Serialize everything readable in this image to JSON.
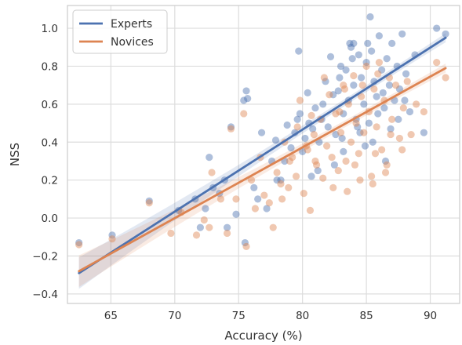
{
  "chart_data": {
    "type": "scatter",
    "title": "",
    "xlabel": "Accuracy (%)",
    "ylabel": "NSS",
    "xlim": [
      61.6,
      92.3
    ],
    "ylim": [
      -0.45,
      1.12
    ],
    "xticks": [
      65,
      70,
      75,
      80,
      85,
      90
    ],
    "xtick_labels": [
      "65",
      "70",
      "75",
      "80",
      "85",
      "90"
    ],
    "yticks": [
      -0.4,
      -0.2,
      0.0,
      0.2,
      0.4,
      0.6,
      0.8,
      1.0
    ],
    "ytick_labels": [
      "−0.4",
      "−0.2",
      "0.0",
      "0.2",
      "0.4",
      "0.6",
      "0.8",
      "1.0"
    ],
    "grid": true,
    "legend_position": "top-left",
    "series": [
      {
        "name": "Experts",
        "color": "#4c72b0",
        "regression": {
          "x": [
            62.5,
            91.2
          ],
          "y": [
            -0.29,
            0.95
          ]
        },
        "points": [
          [
            62.5,
            -0.13
          ],
          [
            65.1,
            -0.09
          ],
          [
            68.0,
            0.09
          ],
          [
            70.3,
            0.04
          ],
          [
            71.6,
            0.1
          ],
          [
            72.0,
            -0.05
          ],
          [
            72.4,
            0.05
          ],
          [
            72.7,
            0.32
          ],
          [
            73.0,
            0.16
          ],
          [
            73.5,
            0.13
          ],
          [
            73.9,
            0.2
          ],
          [
            74.1,
            -0.05
          ],
          [
            74.4,
            0.48
          ],
          [
            74.8,
            0.02
          ],
          [
            75.4,
            0.62
          ],
          [
            75.6,
            0.67
          ],
          [
            75.7,
            0.63
          ],
          [
            75.5,
            -0.13
          ],
          [
            76.2,
            0.16
          ],
          [
            76.5,
            0.1
          ],
          [
            76.8,
            0.45
          ],
          [
            77.2,
            0.05
          ],
          [
            77.6,
            0.3
          ],
          [
            77.9,
            0.41
          ],
          [
            78.0,
            0.2
          ],
          [
            78.3,
            0.2
          ],
          [
            78.6,
            0.3
          ],
          [
            78.8,
            0.49
          ],
          [
            79.1,
            0.37
          ],
          [
            79.4,
            0.45
          ],
          [
            79.6,
            0.52
          ],
          [
            79.8,
            0.55
          ],
          [
            80.0,
            0.35
          ],
          [
            80.2,
            0.42
          ],
          [
            80.5,
            0.5
          ],
          [
            80.7,
            0.22
          ],
          [
            81.0,
            0.58
          ],
          [
            81.3,
            0.4
          ],
          [
            81.6,
            0.6
          ],
          [
            81.8,
            0.72
          ],
          [
            82.0,
            0.48
          ],
          [
            82.2,
            0.85
          ],
          [
            82.4,
            0.65
          ],
          [
            82.6,
            0.44
          ],
          [
            82.8,
            0.67
          ],
          [
            83.0,
            0.8
          ],
          [
            83.2,
            0.55
          ],
          [
            83.4,
            0.78
          ],
          [
            83.6,
            0.62
          ],
          [
            83.8,
            0.9
          ],
          [
            84.0,
            0.7
          ],
          [
            84.2,
            0.52
          ],
          [
            84.4,
            0.86
          ],
          [
            84.6,
            0.74
          ],
          [
            84.8,
            0.6
          ],
          [
            85.0,
            0.82
          ],
          [
            85.2,
            0.5
          ],
          [
            85.4,
            0.88
          ],
          [
            85.6,
            0.72
          ],
          [
            85.8,
            0.64
          ],
          [
            86.0,
            0.96
          ],
          [
            86.2,
            0.78
          ],
          [
            86.4,
            0.58
          ],
          [
            86.6,
            0.84
          ],
          [
            86.8,
            0.7
          ],
          [
            87.0,
            0.92
          ],
          [
            87.2,
            0.62
          ],
          [
            87.4,
            0.8
          ],
          [
            87.6,
            0.68
          ],
          [
            87.8,
            0.97
          ],
          [
            88.1,
            0.76
          ],
          [
            88.4,
            0.56
          ],
          [
            88.8,
            0.86
          ],
          [
            89.5,
            0.45
          ],
          [
            90.5,
            1.0
          ],
          [
            91.2,
            0.97
          ],
          [
            84.0,
            0.92
          ],
          [
            84.5,
            0.45
          ],
          [
            85.3,
            1.06
          ],
          [
            86.5,
            0.3
          ],
          [
            83.2,
            0.35
          ],
          [
            82.5,
            0.28
          ],
          [
            81.2,
            0.25
          ],
          [
            80.4,
            0.66
          ],
          [
            79.7,
            0.88
          ],
          [
            85.5,
            0.4
          ],
          [
            84.9,
            0.38
          ],
          [
            86.9,
            0.47
          ],
          [
            83.7,
            0.92
          ],
          [
            82.9,
            0.74
          ],
          [
            85.9,
            0.55
          ],
          [
            84.3,
            0.48
          ],
          [
            83.1,
            0.42
          ],
          [
            87.5,
            0.52
          ],
          [
            86.3,
            0.66
          ],
          [
            88.0,
            0.62
          ],
          [
            81.5,
            0.52
          ],
          [
            80.8,
            0.47
          ],
          [
            83.9,
            0.84
          ],
          [
            85.1,
            0.92
          ]
        ]
      },
      {
        "name": "Novices",
        "color": "#dd8452",
        "regression": {
          "x": [
            62.5,
            91.2
          ],
          "y": [
            -0.28,
            0.79
          ]
        },
        "points": [
          [
            62.5,
            -0.14
          ],
          [
            65.1,
            -0.11
          ],
          [
            68.0,
            0.08
          ],
          [
            69.7,
            -0.08
          ],
          [
            70.5,
            0.03
          ],
          [
            71.7,
            -0.09
          ],
          [
            72.3,
            -0.01
          ],
          [
            72.7,
            -0.05
          ],
          [
            72.9,
            0.24
          ],
          [
            73.6,
            0.1
          ],
          [
            74.1,
            -0.08
          ],
          [
            74.4,
            0.47
          ],
          [
            74.8,
            0.1
          ],
          [
            75.4,
            0.55
          ],
          [
            75.6,
            -0.15
          ],
          [
            76.0,
            0.2
          ],
          [
            76.3,
            0.05
          ],
          [
            76.7,
            0.32
          ],
          [
            77.0,
            0.12
          ],
          [
            77.4,
            0.08
          ],
          [
            77.7,
            -0.05
          ],
          [
            78.0,
            0.24
          ],
          [
            78.3,
            0.18
          ],
          [
            78.6,
            0.4
          ],
          [
            78.9,
            0.16
          ],
          [
            79.2,
            0.32
          ],
          [
            79.5,
            0.22
          ],
          [
            79.8,
            0.62
          ],
          [
            80.1,
            0.13
          ],
          [
            80.4,
            0.36
          ],
          [
            80.6,
            0.04
          ],
          [
            80.9,
            0.44
          ],
          [
            81.1,
            0.28
          ],
          [
            81.4,
            0.52
          ],
          [
            81.6,
            0.21
          ],
          [
            81.9,
            0.38
          ],
          [
            82.1,
            0.65
          ],
          [
            82.3,
            0.32
          ],
          [
            82.6,
            0.55
          ],
          [
            82.8,
            0.25
          ],
          [
            83.0,
            0.45
          ],
          [
            83.2,
            0.7
          ],
          [
            83.4,
            0.3
          ],
          [
            83.6,
            0.6
          ],
          [
            83.8,
            0.4
          ],
          [
            84.0,
            0.75
          ],
          [
            84.2,
            0.5
          ],
          [
            84.4,
            0.34
          ],
          [
            84.6,
            0.64
          ],
          [
            84.8,
            0.45
          ],
          [
            85.0,
            0.8
          ],
          [
            85.2,
            0.56
          ],
          [
            85.4,
            0.22
          ],
          [
            85.6,
            0.68
          ],
          [
            85.8,
            0.48
          ],
          [
            86.0,
            0.82
          ],
          [
            86.2,
            0.36
          ],
          [
            86.4,
            0.62
          ],
          [
            86.6,
            0.28
          ],
          [
            86.8,
            0.74
          ],
          [
            87.0,
            0.52
          ],
          [
            87.3,
            0.7
          ],
          [
            87.6,
            0.42
          ],
          [
            87.9,
            0.58
          ],
          [
            88.2,
            0.72
          ],
          [
            88.5,
            0.44
          ],
          [
            88.9,
            0.6
          ],
          [
            89.5,
            0.56
          ],
          [
            90.5,
            0.82
          ],
          [
            91.2,
            0.74
          ],
          [
            79.6,
            0.48
          ],
          [
            80.3,
            0.38
          ],
          [
            81.0,
            0.3
          ],
          [
            82.4,
            0.16
          ],
          [
            83.5,
            0.14
          ],
          [
            84.5,
            0.2
          ],
          [
            85.5,
            0.18
          ],
          [
            86.5,
            0.24
          ],
          [
            81.7,
            0.74
          ],
          [
            83.3,
            0.68
          ],
          [
            84.7,
            0.7
          ],
          [
            85.9,
            0.76
          ],
          [
            82.9,
            0.56
          ],
          [
            84.1,
            0.28
          ],
          [
            85.7,
            0.34
          ],
          [
            86.9,
            0.44
          ],
          [
            87.8,
            0.36
          ],
          [
            79.0,
            0.3
          ],
          [
            78.4,
            0.1
          ],
          [
            80.7,
            0.54
          ]
        ]
      }
    ]
  }
}
